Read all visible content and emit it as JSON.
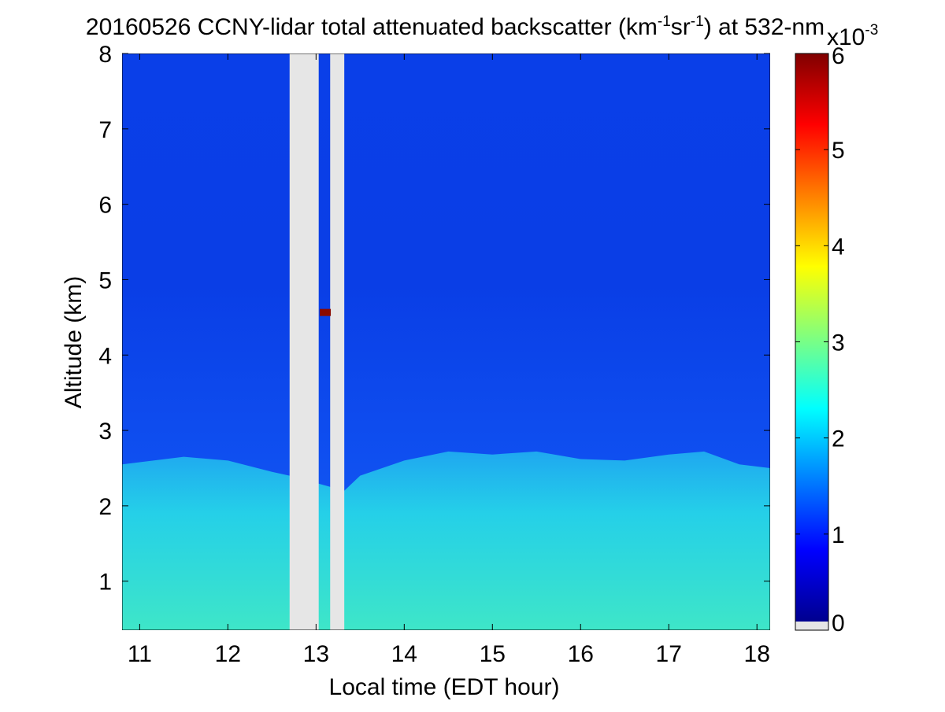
{
  "chart_data": {
    "type": "heatmap",
    "title": {
      "prefix": "20160526 CCNY-lidar total attenuated backscatter (km",
      "sup1": "-1",
      "mid": "sr",
      "sup2": "-1",
      "suffix": ") at 532-nm"
    },
    "xlabel": "Local time (EDT hour)",
    "ylabel": "Altitude (km)",
    "xlim": [
      10.8,
      18.15
    ],
    "ylim": [
      0.35,
      8
    ],
    "xticks": [
      11,
      12,
      13,
      14,
      15,
      16,
      17,
      18
    ],
    "yticks": [
      1,
      2,
      3,
      4,
      5,
      6,
      7,
      8
    ],
    "colorbar": {
      "min": 0,
      "max": 6,
      "ticks": [
        0,
        1,
        2,
        3,
        4,
        5,
        6
      ],
      "multiplier_base": "x10",
      "multiplier_exp": "-3",
      "colormap": "jet",
      "no_data_color": "#e6e6e6"
    },
    "data_gaps": [
      {
        "from": 12.7,
        "to": 13.03
      },
      {
        "from": 13.16,
        "to": 13.32
      }
    ],
    "features": {
      "boundary_layer_top_km": [
        {
          "t": 10.8,
          "h": 2.55
        },
        {
          "t": 11.5,
          "h": 2.65
        },
        {
          "t": 12.0,
          "h": 2.6
        },
        {
          "t": 12.5,
          "h": 2.45
        },
        {
          "t": 12.7,
          "h": 2.4
        },
        {
          "t": 13.32,
          "h": 2.2
        },
        {
          "t": 13.5,
          "h": 2.4
        },
        {
          "t": 14.0,
          "h": 2.6
        },
        {
          "t": 14.5,
          "h": 2.72
        },
        {
          "t": 15.0,
          "h": 2.68
        },
        {
          "t": 15.5,
          "h": 2.72
        },
        {
          "t": 16.0,
          "h": 2.62
        },
        {
          "t": 16.5,
          "h": 2.6
        },
        {
          "t": 17.0,
          "h": 2.68
        },
        {
          "t": 17.4,
          "h": 2.72
        },
        {
          "t": 17.8,
          "h": 2.55
        },
        {
          "t": 18.15,
          "h": 2.5
        }
      ],
      "aerosol_layer_backscatter_e3": 2.0,
      "free_troposphere_backscatter_e3": 0.7,
      "cloud_echo": {
        "time": 13.06,
        "altitude_km": 4.57,
        "backscatter_e3": 6
      }
    }
  }
}
